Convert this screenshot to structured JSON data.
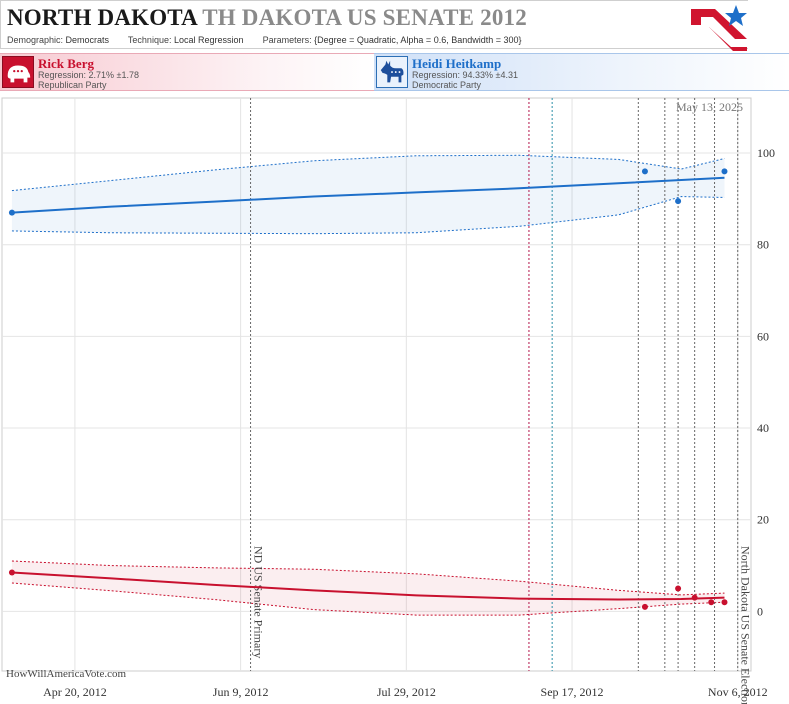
{
  "header": {
    "state": "NORTH DAKOTA",
    "race": "TH DAKOTA US SENATE 2012",
    "demographic_label": "Demographic:",
    "demographic": "Democrats",
    "technique_label": "Technique:",
    "technique": "Local Regression",
    "parameters_label": "Parameters:",
    "parameters": "{Degree = Quadratic, Alpha = 0.6, Bandwidth = 300}"
  },
  "candidates": {
    "rep": {
      "name": "Rick Berg",
      "regression": "Regression: 2.71% ±1.78",
      "party": "Republican Party",
      "color": "#c8102e",
      "icon": "elephant-icon"
    },
    "dem": {
      "name": "Heidi Heitkamp",
      "regression": "Regression: 94.33% ±4.31",
      "party": "Democratic Party",
      "color": "#1e6fc9",
      "icon": "donkey-icon"
    }
  },
  "watermark": "HowWillAmericaVote.com",
  "chart_data": {
    "type": "scatter",
    "date_label": "May 13, 2025",
    "x_ticks": [
      {
        "date": "2012-04-20",
        "label": "Apr 20, 2012"
      },
      {
        "date": "2012-06-09",
        "label": "Jun 9, 2012"
      },
      {
        "date": "2012-07-29",
        "label": "Jul 29, 2012"
      },
      {
        "date": "2012-09-17",
        "label": "Sep 17, 2012"
      },
      {
        "date": "2012-11-06",
        "label": "Nov 6, 2012"
      }
    ],
    "xlim": [
      "2012-03-29",
      "2012-11-10"
    ],
    "ylim": [
      -13,
      112
    ],
    "y_ticks": [
      0,
      20,
      40,
      60,
      80,
      100
    ],
    "grid": true,
    "events": [
      {
        "date": "2012-06-12",
        "label": "ND US Senate Primary",
        "color": "#666666"
      },
      {
        "date": "2012-09-04",
        "label": "",
        "color": "#b4154a"
      },
      {
        "date": "2012-09-11",
        "label": "",
        "color": "#2b8fa8"
      },
      {
        "date": "2012-10-07",
        "label": "",
        "color": "#666666"
      },
      {
        "date": "2012-10-15",
        "label": "",
        "color": "#666666"
      },
      {
        "date": "2012-10-19",
        "label": "",
        "color": "#666666"
      },
      {
        "date": "2012-10-24",
        "label": "",
        "color": "#666666"
      },
      {
        "date": "2012-10-30",
        "label": "",
        "color": "#666666"
      },
      {
        "date": "2012-11-06",
        "label": "North Dakota US Senate Election",
        "color": "#666666"
      }
    ],
    "series": [
      {
        "name": "Heidi Heitkamp",
        "color": "#1e6fc9",
        "points": [
          {
            "x": "2012-04-01",
            "y": 87
          },
          {
            "x": "2012-10-09",
            "y": 96
          },
          {
            "x": "2012-10-19",
            "y": 89.5
          },
          {
            "x": "2012-11-02",
            "y": 96
          }
        ],
        "fit": [
          {
            "x": "2012-04-01",
            "y": 87.0,
            "lo": 83.0,
            "hi": 91.8
          },
          {
            "x": "2012-05-01",
            "y": 88.3,
            "lo": 82.6,
            "hi": 94.0
          },
          {
            "x": "2012-06-01",
            "y": 89.4,
            "lo": 82.5,
            "hi": 96.3
          },
          {
            "x": "2012-07-01",
            "y": 90.5,
            "lo": 82.4,
            "hi": 98.3
          },
          {
            "x": "2012-08-01",
            "y": 91.4,
            "lo": 82.6,
            "hi": 99.4
          },
          {
            "x": "2012-09-01",
            "y": 92.3,
            "lo": 84.0,
            "hi": 99.5
          },
          {
            "x": "2012-10-01",
            "y": 93.4,
            "lo": 86.5,
            "hi": 98.6
          },
          {
            "x": "2012-10-20",
            "y": 94.1,
            "lo": 90.5,
            "hi": 96.5
          },
          {
            "x": "2012-11-02",
            "y": 94.6,
            "lo": 90.3,
            "hi": 98.8
          }
        ]
      },
      {
        "name": "Rick Berg",
        "color": "#c8102e",
        "points": [
          {
            "x": "2012-04-01",
            "y": 8.5
          },
          {
            "x": "2012-10-09",
            "y": 1
          },
          {
            "x": "2012-10-19",
            "y": 5
          },
          {
            "x": "2012-10-24",
            "y": 3
          },
          {
            "x": "2012-10-29",
            "y": 2
          },
          {
            "x": "2012-11-02",
            "y": 2
          }
        ],
        "fit": [
          {
            "x": "2012-04-01",
            "y": 8.5,
            "lo": 6.2,
            "hi": 11.0
          },
          {
            "x": "2012-05-01",
            "y": 7.2,
            "lo": 4.5,
            "hi": 10.0
          },
          {
            "x": "2012-06-01",
            "y": 5.8,
            "lo": 2.6,
            "hi": 9.5
          },
          {
            "x": "2012-07-01",
            "y": 4.6,
            "lo": 0.4,
            "hi": 9.2
          },
          {
            "x": "2012-08-01",
            "y": 3.5,
            "lo": -0.8,
            "hi": 8.2
          },
          {
            "x": "2012-09-01",
            "y": 2.8,
            "lo": -0.8,
            "hi": 6.6
          },
          {
            "x": "2012-10-01",
            "y": 2.6,
            "lo": 0.6,
            "hi": 4.6
          },
          {
            "x": "2012-10-20",
            "y": 2.7,
            "lo": 1.6,
            "hi": 3.6
          },
          {
            "x": "2012-11-02",
            "y": 3.0,
            "lo": 2.0,
            "hi": 4.0
          }
        ]
      }
    ]
  }
}
